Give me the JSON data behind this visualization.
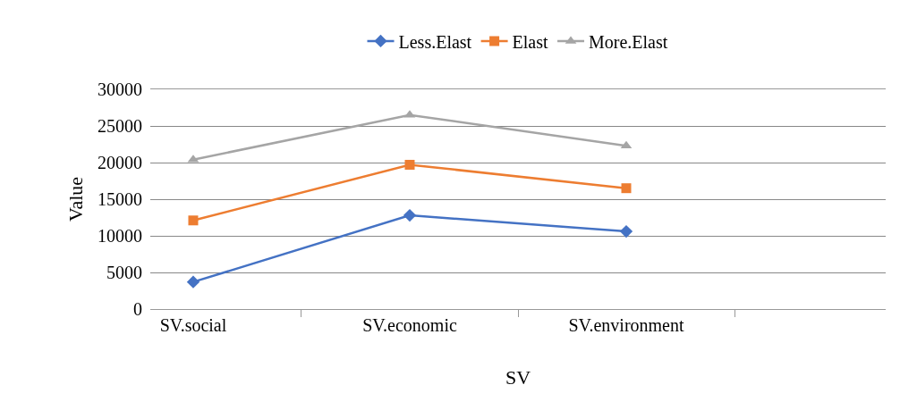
{
  "chart_data": {
    "type": "line",
    "xlabel": "SV",
    "ylabel": "Value",
    "categories": [
      "SV.social",
      "SV.economic",
      "SV.environment",
      null
    ],
    "series": [
      {
        "name": "Less.Elast",
        "color": "#4472c4",
        "marker": "diamond",
        "values": [
          3700,
          12800,
          10600,
          null
        ]
      },
      {
        "name": "Elast",
        "color": "#ed7d31",
        "marker": "square",
        "values": [
          12100,
          19700,
          16500,
          null
        ]
      },
      {
        "name": "More.Elast",
        "color": "#a5a5a5",
        "marker": "triangle",
        "values": [
          20400,
          26500,
          22300,
          null
        ]
      }
    ],
    "ylim": [
      0,
      30000
    ],
    "yticks": [
      0,
      5000,
      10000,
      15000,
      20000,
      25000,
      30000
    ],
    "grid": "y",
    "legend": "top",
    "line_style": "solid"
  }
}
